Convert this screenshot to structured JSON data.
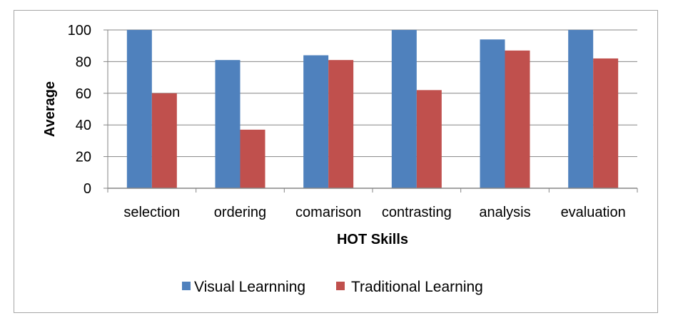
{
  "chart_data": {
    "type": "bar",
    "categories": [
      "selection",
      "ordering",
      "comarison",
      "contrasting",
      "analysis",
      "evaluation"
    ],
    "series": [
      {
        "name": "Visual Learnning",
        "color": "#4f81bd",
        "values": [
          100,
          81,
          84,
          100,
          94,
          100
        ]
      },
      {
        "name": "Traditional Learning",
        "color": "#c0504d",
        "values": [
          60,
          37,
          81,
          62,
          87,
          82
        ]
      }
    ],
    "xlabel": "HOT  Skills",
    "ylabel": "Average",
    "ylim": [
      0,
      100
    ],
    "yticks": [
      0,
      20,
      40,
      60,
      80,
      100
    ],
    "grid": true,
    "legend": "bottom"
  }
}
